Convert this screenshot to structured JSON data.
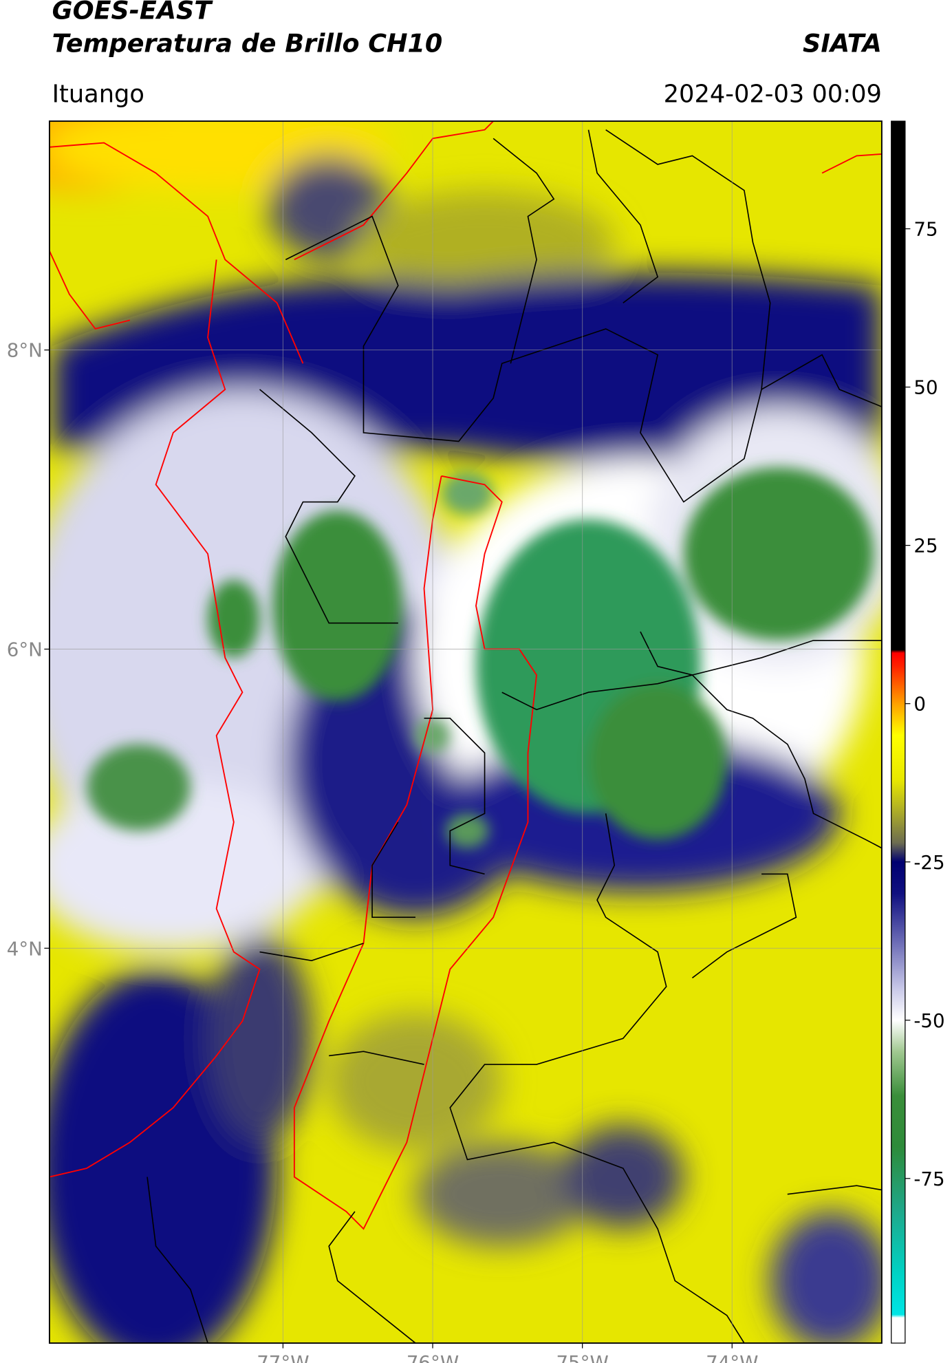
{
  "header": {
    "title": "GOES-EAST",
    "subtitle": "Temperatura de Brillo CH10",
    "source": "SIATA",
    "location": "Ituango",
    "datetime": "2024-02-03 00:09"
  },
  "map": {
    "type": "map",
    "xlim": [
      -78.56,
      -73.0
    ],
    "ylim": [
      1.36,
      9.53
    ],
    "xticks": [
      {
        "value": -77,
        "label": "77°W"
      },
      {
        "value": -76,
        "label": "76°W"
      },
      {
        "value": -75,
        "label": "75°W"
      },
      {
        "value": -74,
        "label": "74°W"
      }
    ],
    "yticks": [
      {
        "value": 8,
        "label": "8°N"
      },
      {
        "value": 6,
        "label": "6°N"
      },
      {
        "value": 4,
        "label": "4°N"
      }
    ],
    "grid": true,
    "colorbar": {
      "clim": [
        -101,
        92
      ],
      "ticks": [
        75,
        50,
        25,
        0,
        -25,
        -50,
        -75
      ],
      "stops": [
        {
          "value": -101,
          "color": "#ffffff"
        },
        {
          "value": -97,
          "color": "#ffffff"
        },
        {
          "value": -96.5,
          "color": "#00e5e5"
        },
        {
          "value": -90,
          "color": "#00d2c4"
        },
        {
          "value": -80,
          "color": "#1fa88a"
        },
        {
          "value": -70,
          "color": "#2e8b3a"
        },
        {
          "value": -62,
          "color": "#3a8e3a"
        },
        {
          "value": -55,
          "color": "#a0c890"
        },
        {
          "value": -50,
          "color": "#ffffff"
        },
        {
          "value": -45,
          "color": "#c8c8e8"
        },
        {
          "value": -38,
          "color": "#7070b8"
        },
        {
          "value": -30,
          "color": "#101080"
        },
        {
          "value": -25,
          "color": "#000070"
        },
        {
          "value": -22,
          "color": "#6c6c50"
        },
        {
          "value": -18,
          "color": "#a0a030"
        },
        {
          "value": -12,
          "color": "#e8e800"
        },
        {
          "value": -5,
          "color": "#ffff00"
        },
        {
          "value": 0,
          "color": "#ffa000"
        },
        {
          "value": 6,
          "color": "#ff2000"
        },
        {
          "value": 8,
          "color": "#ff0000"
        },
        {
          "value": 8.5,
          "color": "#000000"
        },
        {
          "value": 92,
          "color": "#000000"
        }
      ]
    }
  }
}
